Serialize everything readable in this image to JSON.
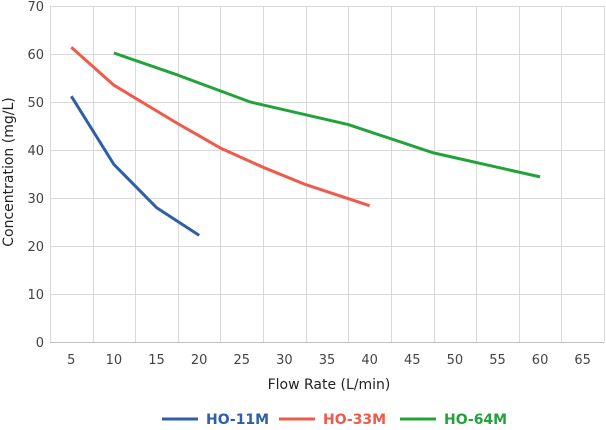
{
  "chart_data": {
    "type": "line",
    "title": "",
    "xlabel": "Flow Rate (L/min)",
    "ylabel": "Concentration (mg/L)",
    "xlim": [
      2.5,
      67.5
    ],
    "ylim": [
      0,
      70
    ],
    "xticks": [
      5,
      10,
      15,
      20,
      25,
      30,
      35,
      40,
      45,
      50,
      55,
      60,
      65
    ],
    "yticks": [
      0,
      10,
      20,
      30,
      40,
      50,
      60,
      70
    ],
    "grid": true,
    "legend_position": "bottom",
    "series": [
      {
        "name": "HO-11M",
        "color": "#2e5fa8",
        "x": [
          5,
          10,
          15,
          20
        ],
        "y": [
          51.2,
          37,
          28,
          22.2
        ]
      },
      {
        "name": "HO-33M",
        "color": "#f05a4a",
        "x": [
          5,
          10,
          17.5,
          22.5,
          27.5,
          32.5,
          40
        ],
        "y": [
          61.4,
          53.5,
          45.5,
          40.4,
          36.4,
          32.8,
          28.4
        ]
      },
      {
        "name": "HO-64M",
        "color": "#22a33a",
        "x": [
          10,
          17.5,
          26,
          37.5,
          47.5,
          60
        ],
        "y": [
          60.2,
          55.6,
          50,
          45.3,
          39.4,
          34.4
        ]
      }
    ]
  }
}
